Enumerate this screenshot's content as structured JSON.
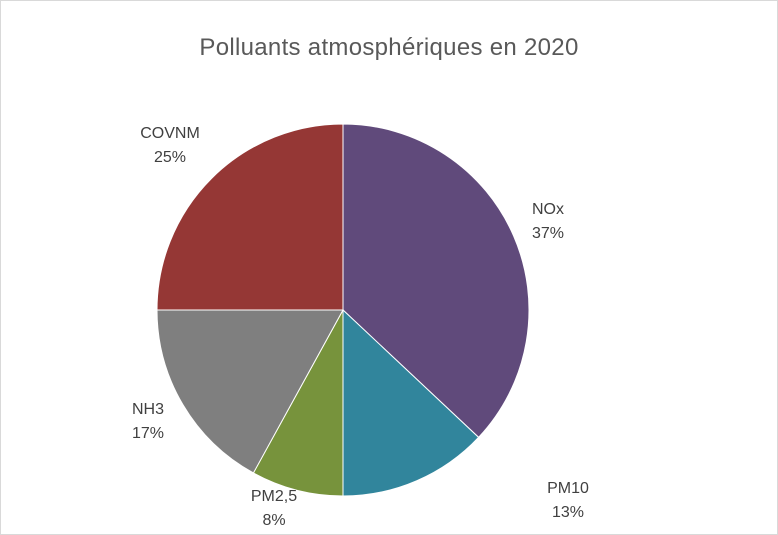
{
  "chart_data": {
    "type": "pie",
    "title": "Polluants atmosphériques en 2020",
    "slices": [
      {
        "label": "NOx",
        "pct_label": "37%",
        "value": 37,
        "color": "#604a7b"
      },
      {
        "label": "PM10",
        "pct_label": "13%",
        "value": 13,
        "color": "#31859c"
      },
      {
        "label": "PM2,5",
        "pct_label": "8%",
        "value": 8,
        "color": "#77933c"
      },
      {
        "label": "NH3",
        "pct_label": "17%",
        "value": 17,
        "color": "#7f7f7f"
      },
      {
        "label": "COVNM",
        "pct_label": "25%",
        "value": 25,
        "color": "#953735"
      }
    ],
    "start_angle": "12 o'clock",
    "direction": "clockwise",
    "legend": "none (data labels outside slices)"
  }
}
